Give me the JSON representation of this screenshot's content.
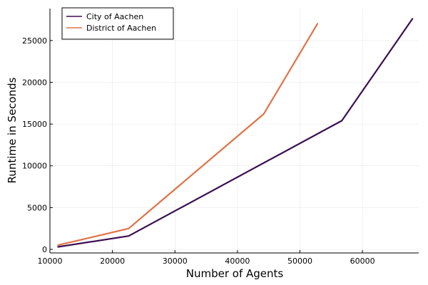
{
  "chart_data": {
    "type": "line",
    "xlabel": "Number of Agents",
    "ylabel": "Runtime in Seconds",
    "xlim": [
      10000,
      69000
    ],
    "ylim": [
      0,
      28400
    ],
    "xticks": [
      10000,
      20000,
      30000,
      40000,
      50000,
      60000
    ],
    "yticks": [
      0,
      5000,
      10000,
      15000,
      20000,
      25000
    ],
    "xtick_labels": [
      "10000",
      "20000",
      "30000",
      "40000",
      "50000",
      "60000"
    ],
    "ytick_labels": [
      "0",
      "5000",
      "10000",
      "15000",
      "20000",
      "25000"
    ],
    "grid": true,
    "legend_position": "top-left",
    "series": [
      {
        "name": "City of Aachen",
        "color": "#3b0f51",
        "x": [
          11300,
          22600,
          56700,
          68000
        ],
        "y": [
          300,
          1600,
          15400,
          27600
        ]
      },
      {
        "name": "District of Aachen",
        "color": "#e07248",
        "x": [
          11300,
          22600,
          44200,
          52800
        ],
        "y": [
          500,
          2500,
          16200,
          27000
        ]
      }
    ]
  }
}
